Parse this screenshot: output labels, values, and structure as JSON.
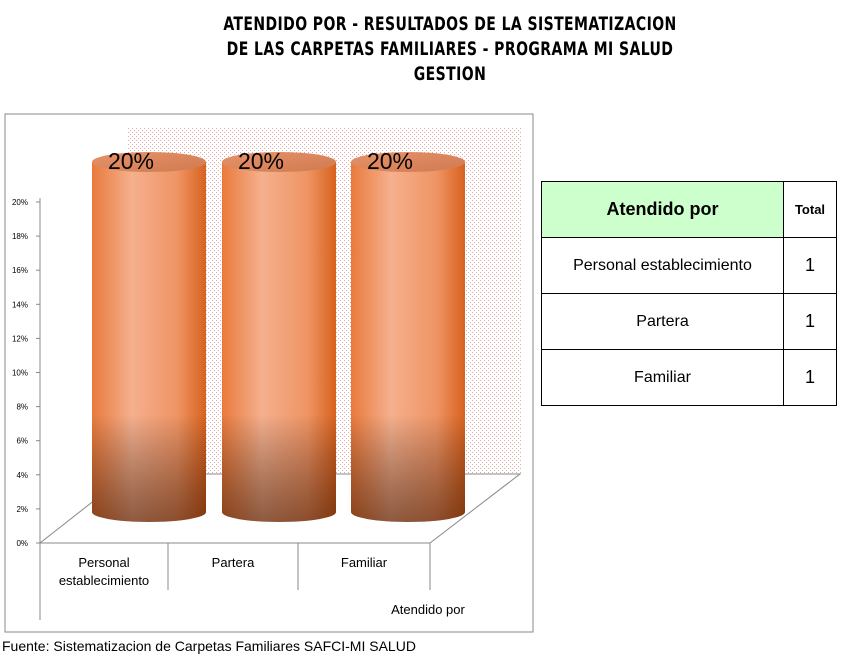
{
  "title_lines": [
    "ATENDIDO POR - RESULTADOS DE LA SISTEMATIZACION",
    "DE LAS CARPETAS FAMILIARES - PROGRAMA MI SALUD",
    "GESTION"
  ],
  "chart_data": {
    "type": "bar",
    "style": "3d-cylinder",
    "categories": [
      "Personal establecimiento",
      "Partera",
      "Familiar"
    ],
    "values": [
      20,
      20,
      20
    ],
    "data_labels": [
      "20%",
      "20%",
      "20%"
    ],
    "xlabel": "Atendido  por",
    "ylabel": "",
    "ylim": [
      0,
      20
    ],
    "yticks": [
      "0%",
      "2%",
      "4%",
      "6%",
      "8%",
      "10%",
      "12%",
      "14%",
      "16%",
      "18%",
      "20%"
    ],
    "grid": false,
    "legend": "none",
    "bar_color": "#f4a37c",
    "bar_shadow_color": "#e06a1f"
  },
  "table": {
    "header_category": "Atendido  por",
    "header_total": "Total",
    "rows": [
      {
        "label": "Personal establecimiento",
        "total": "1"
      },
      {
        "label": "Partera",
        "total": "1"
      },
      {
        "label": "Familiar",
        "total": "1"
      }
    ],
    "header_color": "#ccffcc"
  },
  "source": "Fuente: Sistematizacion de Carpetas Familiares SAFCI-MI SALUD"
}
